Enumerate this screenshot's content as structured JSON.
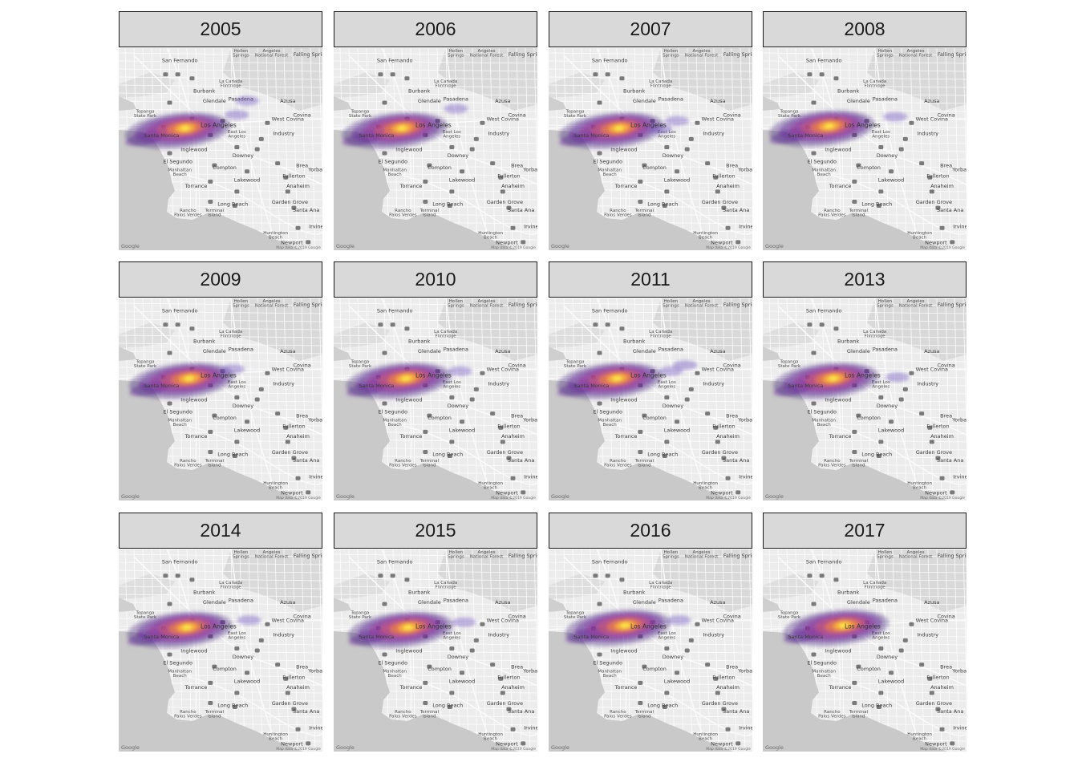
{
  "panels": [
    {
      "year": "2005",
      "hotspot": [
        0.29,
        0.4
      ],
      "extra_blobs": [
        [
          0.58,
          0.33
        ],
        [
          0.63,
          0.26
        ]
      ]
    },
    {
      "year": "2006",
      "hotspot": [
        0.3,
        0.4
      ],
      "extra_blobs": [
        [
          0.6,
          0.3
        ]
      ]
    },
    {
      "year": "2007",
      "hotspot": [
        0.31,
        0.4
      ],
      "extra_blobs": [
        [
          0.63,
          0.36
        ],
        [
          0.55,
          0.4
        ]
      ]
    },
    {
      "year": "2008",
      "hotspot": [
        0.29,
        0.39
      ],
      "extra_blobs": [
        [
          0.65,
          0.34
        ]
      ]
    },
    {
      "year": "2009",
      "hotspot": [
        0.31,
        0.4
      ],
      "extra_blobs": [
        [
          0.56,
          0.35
        ]
      ]
    },
    {
      "year": "2010",
      "hotspot": [
        0.32,
        0.4
      ],
      "extra_blobs": [
        [
          0.62,
          0.36
        ]
      ]
    },
    {
      "year": "2011",
      "hotspot": [
        0.3,
        0.4
      ],
      "extra_blobs": [
        [
          0.6,
          0.36
        ],
        [
          0.67,
          0.33
        ]
      ]
    },
    {
      "year": "2013",
      "hotspot": [
        0.31,
        0.4
      ],
      "extra_blobs": [
        [
          0.66,
          0.39
        ]
      ]
    },
    {
      "year": "2014",
      "hotspot": [
        0.3,
        0.39
      ],
      "extra_blobs": [
        [
          0.64,
          0.35
        ]
      ]
    },
    {
      "year": "2015",
      "hotspot": [
        0.33,
        0.39
      ],
      "extra_blobs": [
        [
          0.64,
          0.36
        ]
      ]
    },
    {
      "year": "2016",
      "hotspot": [
        0.34,
        0.38
      ],
      "extra_blobs": [
        [
          0.64,
          0.35
        ]
      ]
    },
    {
      "year": "2017",
      "hotspot": [
        0.36,
        0.38
      ],
      "extra_blobs": []
    }
  ],
  "basemap": {
    "places": [
      {
        "name": "Hollen Springs",
        "lines": [
          "Hollen",
          "Springs"
        ],
        "p": [
          0.6,
          0.02
        ]
      },
      {
        "name": "Angeles National Forest",
        "lines": [
          "Angeles",
          "National Forest"
        ],
        "p": [
          0.75,
          0.02
        ]
      },
      {
        "name": "Falling Springs",
        "lines": [
          "Falling Springs"
        ],
        "p": [
          0.95,
          0.04
        ]
      },
      {
        "name": "San Fernando",
        "lines": [
          "San Fernando"
        ],
        "p": [
          0.3,
          0.07
        ]
      },
      {
        "name": "La Canada Flintridge",
        "lines": [
          "La Canada",
          "Flintridge"
        ],
        "p": [
          0.55,
          0.17
        ]
      },
      {
        "name": "Burbank",
        "lines": [
          "Burbank"
        ],
        "p": [
          0.42,
          0.22
        ]
      },
      {
        "name": "Glendale",
        "lines": [
          "Glendale"
        ],
        "p": [
          0.47,
          0.27
        ]
      },
      {
        "name": "Pasadena",
        "lines": [
          "Pasadena"
        ],
        "p": [
          0.6,
          0.26
        ]
      },
      {
        "name": "Azusa",
        "lines": [
          "Azusa"
        ],
        "p": [
          0.83,
          0.27
        ]
      },
      {
        "name": "Topanga State Park",
        "lines": [
          "Topanga",
          "State Park"
        ],
        "p": [
          0.13,
          0.32
        ]
      },
      {
        "name": "West Covina",
        "lines": [
          "West Covina"
        ],
        "p": [
          0.83,
          0.36
        ]
      },
      {
        "name": "Covina",
        "lines": [
          "Covina"
        ],
        "p": [
          0.9,
          0.34
        ]
      },
      {
        "name": "East Los Angeles",
        "lines": [
          "East Los",
          "Angeles"
        ],
        "p": [
          0.58,
          0.42
        ]
      },
      {
        "name": "Industry",
        "lines": [
          "Industry"
        ],
        "p": [
          0.81,
          0.43
        ]
      },
      {
        "name": "Inglewood",
        "lines": [
          "Inglewood"
        ],
        "p": [
          0.37,
          0.51
        ]
      },
      {
        "name": "Downey",
        "lines": [
          "Downey"
        ],
        "p": [
          0.61,
          0.54
        ]
      },
      {
        "name": "El Segundo",
        "lines": [
          "El Segundo"
        ],
        "p": [
          0.29,
          0.57
        ]
      },
      {
        "name": "Manhattan Beach",
        "lines": [
          "Manhattan",
          "Beach"
        ],
        "p": [
          0.3,
          0.61
        ]
      },
      {
        "name": "Compton",
        "lines": [
          "Compton"
        ],
        "p": [
          0.52,
          0.6
        ]
      },
      {
        "name": "Brea",
        "lines": [
          "Brea"
        ],
        "p": [
          0.9,
          0.59
        ]
      },
      {
        "name": "Fullerton",
        "lines": [
          "Fullerton"
        ],
        "p": [
          0.86,
          0.64
        ]
      },
      {
        "name": "Yorba Linda",
        "lines": [
          "Yorba Li"
        ],
        "p": [
          0.98,
          0.61
        ]
      },
      {
        "name": "Torrance",
        "lines": [
          "Torrance"
        ],
        "p": [
          0.38,
          0.69
        ]
      },
      {
        "name": "Lakewood",
        "lines": [
          "Lakewood"
        ],
        "p": [
          0.63,
          0.66
        ]
      },
      {
        "name": "Anaheim",
        "lines": [
          "Anaheim"
        ],
        "p": [
          0.88,
          0.69
        ]
      },
      {
        "name": "Long Beach",
        "lines": [
          "Long Beach"
        ],
        "p": [
          0.56,
          0.78
        ]
      },
      {
        "name": "Garden Grove",
        "lines": [
          "Garden Grove"
        ],
        "p": [
          0.84,
          0.77
        ]
      },
      {
        "name": "Rancho Palos Verdes",
        "lines": [
          "Rancho",
          "Palos Verdes"
        ],
        "p": [
          0.34,
          0.81
        ]
      },
      {
        "name": "Terminal Island",
        "lines": [
          "Terminal",
          "Island"
        ],
        "p": [
          0.47,
          0.81
        ]
      },
      {
        "name": "Santa Ana",
        "lines": [
          "Santa Ana"
        ],
        "p": [
          0.92,
          0.81
        ]
      },
      {
        "name": "Irvine",
        "lines": [
          "Irvine"
        ],
        "p": [
          0.97,
          0.89
        ]
      },
      {
        "name": "Huntington Beach",
        "lines": [
          "Huntington",
          "Beach"
        ],
        "p": [
          0.77,
          0.92
        ]
      },
      {
        "name": "Newport",
        "lines": [
          "Newport"
        ],
        "p": [
          0.85,
          0.97
        ]
      }
    ],
    "la_label": "Los Angeles",
    "santa_monica_label": "Santa Monica",
    "attribution": "Map data ©2019 Google",
    "google": "Google"
  },
  "density_colors": [
    "#3b1a78",
    "#6a2c9c",
    "#9a3c9b",
    "#c8567a",
    "#ea7d4a",
    "#fbb33b",
    "#fde94d"
  ]
}
